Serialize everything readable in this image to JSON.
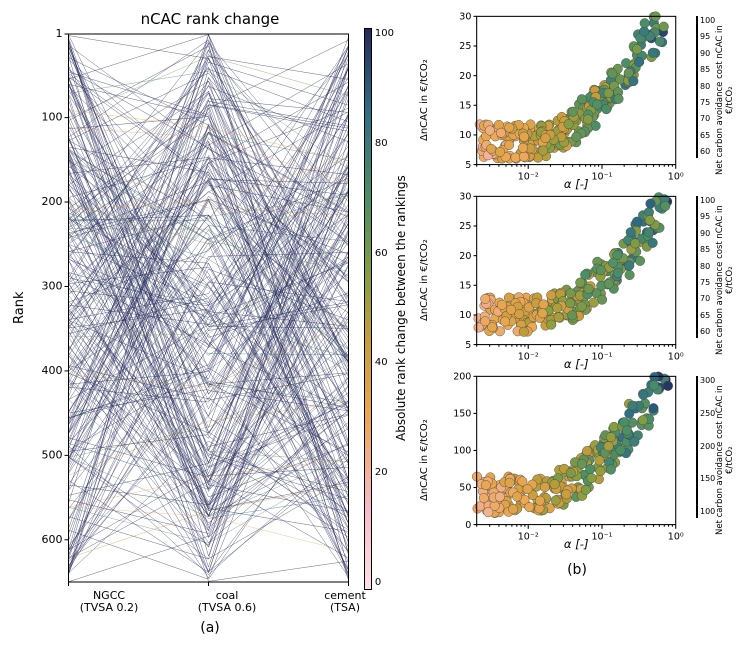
{
  "panel_a": {
    "type": "parallel-coordinates",
    "title": "nCAC rank change",
    "ylabel": "Rank",
    "ylim": [
      1,
      650
    ],
    "y_inverted": true,
    "yticks": [
      1,
      100,
      200,
      300,
      400,
      500,
      600
    ],
    "x_categories": [
      "NGCC\n(TVSA 0.2)",
      "coal\n(TVSA 0.6)",
      "cement\n(TSA)"
    ],
    "n_lines": 300,
    "colorbar": {
      "label": "Absolute rank change between the rankings",
      "ticks": [
        0,
        20,
        40,
        60,
        80,
        100
      ],
      "vmin": 0,
      "vmax": 100
    },
    "sublabel": "(a)",
    "line_width": 0.5,
    "line_alpha": 0.7,
    "background": "#ffffff",
    "tick_fontsize": 11,
    "title_fontsize": 15,
    "label_fontsize": 13,
    "seed": 123
  },
  "colormap": {
    "name": "viridis-pink-custom",
    "stops": [
      {
        "t": 0.0,
        "c": "#fde0e8"
      },
      {
        "t": 0.15,
        "c": "#f8b9c7"
      },
      {
        "t": 0.3,
        "c": "#eda752"
      },
      {
        "t": 0.45,
        "c": "#c69c3a"
      },
      {
        "t": 0.55,
        "c": "#8a9e3f"
      },
      {
        "t": 0.7,
        "c": "#4a8e67"
      },
      {
        "t": 0.85,
        "c": "#2f6f86"
      },
      {
        "t": 1.0,
        "c": "#252a5a"
      }
    ]
  },
  "panel_b": {
    "sublabel": "(b)",
    "common": {
      "xlabel": "α [-]",
      "ylabel": "ΔnCAC in €/t_CO₂",
      "xscale": "log",
      "xlim": [
        0.002,
        1.0
      ],
      "xticks_major": [
        0.01,
        0.1,
        1.0
      ],
      "xtick_labels": [
        "10⁻²",
        "10⁻¹",
        "10⁰"
      ],
      "marker": "circle",
      "marker_size": 4.5,
      "marker_edge": "#444444",
      "marker_edge_width": 0.4,
      "grid": false,
      "background": "#ffffff",
      "label_fontsize": 10,
      "tick_fontsize": 9,
      "n_points": 260,
      "cbar_label": "Net carbon avoidance cost nCAC in €/t_CO₂"
    },
    "subplots": [
      {
        "ylim": [
          5,
          30
        ],
        "yticks": [
          5,
          10,
          15,
          20,
          25,
          30
        ],
        "cbar_ticks": [
          60,
          65,
          70,
          75,
          80,
          85,
          90,
          95,
          100
        ],
        "cbar_vmin": 60,
        "cbar_vmax": 100,
        "data_shape": {
          "alpha_min": 0.002,
          "alpha_max": 0.7,
          "y_base": 9,
          "y_spread_low": 3,
          "y_rise": 18,
          "color_min": 60,
          "color_max": 100
        }
      },
      {
        "ylim": [
          5,
          30
        ],
        "yticks": [
          5,
          10,
          15,
          20,
          25,
          30
        ],
        "cbar_ticks": [
          60,
          65,
          70,
          75,
          80,
          85,
          90,
          95,
          100
        ],
        "cbar_vmin": 60,
        "cbar_vmax": 100,
        "data_shape": {
          "alpha_min": 0.002,
          "alpha_max": 0.8,
          "y_base": 10,
          "y_spread_low": 3,
          "y_rise": 17,
          "color_min": 60,
          "color_max": 100
        }
      },
      {
        "ylim": [
          0,
          200
        ],
        "yticks": [
          0,
          50,
          100,
          150,
          200
        ],
        "cbar_ticks": [
          100,
          150,
          200,
          250,
          300
        ],
        "cbar_vmin": 100,
        "cbar_vmax": 300,
        "data_shape": {
          "alpha_min": 0.002,
          "alpha_max": 0.8,
          "y_base": 40,
          "y_spread_low": 25,
          "y_rise": 150,
          "color_min": 100,
          "color_max": 300
        }
      }
    ]
  }
}
